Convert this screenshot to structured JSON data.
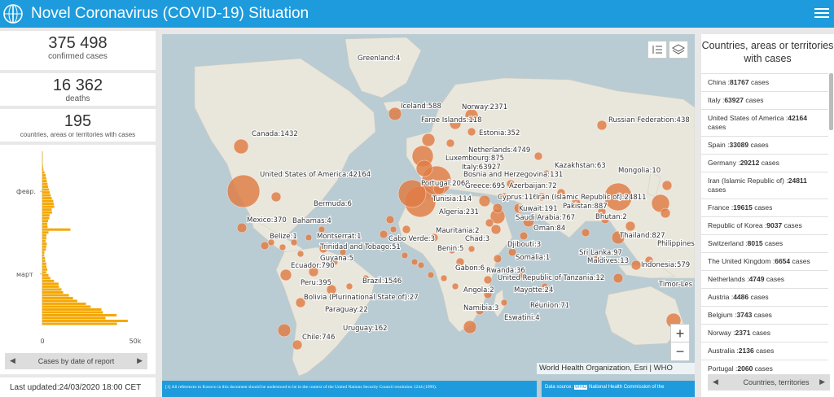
{
  "header": {
    "title": "Novel Coronavirus (COVID-19) Situation"
  },
  "stats": {
    "confirmed": {
      "value": "375 498",
      "label": "confirmed cases"
    },
    "deaths": {
      "value": "16 362",
      "label": "deaths"
    },
    "countries": {
      "value": "195",
      "label": "countries, areas or territories with cases"
    }
  },
  "chart_data": {
    "type": "bar",
    "orientation": "horizontal",
    "title": "",
    "y_tick_labels": [
      "февр.",
      "март"
    ],
    "x_tick_labels": [
      "0",
      "50k"
    ],
    "xlim": [
      0,
      50000
    ],
    "color": "#f5a700",
    "values": [
      50,
      80,
      120,
      150,
      200,
      400,
      600,
      1200,
      1800,
      2100,
      2400,
      2800,
      3100,
      3600,
      4000,
      4500,
      5100,
      5900,
      6200,
      6400,
      5000,
      5200,
      3900,
      3700,
      3100,
      2700,
      2800,
      15100,
      3300,
      2200,
      2100,
      1800,
      2400,
      2100,
      1900,
      1100,
      1000,
      1400,
      1600,
      2100,
      2200,
      2700,
      2100,
      3300,
      4300,
      6300,
      8700,
      9000,
      10300,
      11200,
      14300,
      16500,
      18800,
      23500,
      26000,
      31800,
      32600,
      40000,
      34000,
      46000,
      40200
    ]
  },
  "chart_tab": {
    "label": "Cases by date of report"
  },
  "last_updated": "Last updated:24/03/2020 18:00 CET",
  "map": {
    "bubble_color": "#e17b43",
    "labels": [
      {
        "t": "Greenland:4"
      },
      {
        "t": "Iceland:588"
      },
      {
        "t": "Norway:2371"
      },
      {
        "t": "Faroe Islands:118"
      },
      {
        "t": "Estonia:352"
      },
      {
        "t": "Russian Federation:438"
      },
      {
        "t": "Canada:1432"
      },
      {
        "t": "Netherlands:4749"
      },
      {
        "t": "Luxembourg:875"
      },
      {
        "t": "Italy:63927"
      },
      {
        "t": "Kazakhstan:63"
      },
      {
        "t": "Mongolia:10"
      },
      {
        "t": "Bosnia and Herzegovina:131"
      },
      {
        "t": "United States of America:42164"
      },
      {
        "t": "Portugal:2060"
      },
      {
        "t": "Greece:695"
      },
      {
        "t": "Azerbaijan:72"
      },
      {
        "t": "Cyprus:116"
      },
      {
        "t": "Iran (Islamic Republic of):24811"
      },
      {
        "t": "Bermuda:6"
      },
      {
        "t": "Tunisia:114"
      },
      {
        "t": "Pakistan:887"
      },
      {
        "t": "Kuwait:191"
      },
      {
        "t": "Algeria:231"
      },
      {
        "t": "Bhutan:2"
      },
      {
        "t": "Mexico:370"
      },
      {
        "t": "Bahamas:4"
      },
      {
        "t": "Saudi Arabia:767"
      },
      {
        "t": "Oman:84"
      },
      {
        "t": "Mauritania:2"
      },
      {
        "t": "Thailand:827"
      },
      {
        "t": "Belize:1"
      },
      {
        "t": "Montserrat:1"
      },
      {
        "t": "Cabo Verde:3"
      },
      {
        "t": "Chad:3"
      },
      {
        "t": "Philippines"
      },
      {
        "t": "Trinidad and Tobago:51"
      },
      {
        "t": "Djibouti:3"
      },
      {
        "t": "Benin:5"
      },
      {
        "t": "Sri Lanka:97"
      },
      {
        "t": "Guyana:5"
      },
      {
        "t": "Somalia:1"
      },
      {
        "t": "Maldives:13"
      },
      {
        "t": "Indonesia:579"
      },
      {
        "t": "Ecuador:790"
      },
      {
        "t": "Gabon:6"
      },
      {
        "t": "Rwanda:36"
      },
      {
        "t": "United Republic of Tanzania:12"
      },
      {
        "t": "Peru:395"
      },
      {
        "t": "Brazil:1546"
      },
      {
        "t": "Timor-Les"
      },
      {
        "t": "Angola:2"
      },
      {
        "t": "Mayotte:24"
      },
      {
        "t": "Bolivia (Plurinational State of):27"
      },
      {
        "t": "Namibia:3"
      },
      {
        "t": "Réunion:71"
      },
      {
        "t": "Paraguay:22"
      },
      {
        "t": "Eswatini:4"
      },
      {
        "t": "Uruguay:162"
      },
      {
        "t": "Chile:746"
      }
    ],
    "zoom_in": "+",
    "zoom_out": "−",
    "attribution": "World Health Organization, Esri | WHO",
    "footnote": "[1] All references to Kosovo in this document should be understood to be in the context of the United Nations Security Council resolution 1244 (1999).",
    "datasource_prefix": "Data source: ",
    "datasource_who": "WHO",
    "datasource_rest": " National Health Commission of the"
  },
  "list": {
    "title": "Countries, areas or territories with cases",
    "rows": [
      {
        "name": "China",
        "count": "81767",
        "unit": "cases"
      },
      {
        "name": "Italy",
        "count": "63927",
        "unit": "cases"
      },
      {
        "name": "United States of America",
        "count": "42164",
        "unit": "cases"
      },
      {
        "name": "Spain",
        "count": "33089",
        "unit": "cases"
      },
      {
        "name": "Germany",
        "count": "29212",
        "unit": "cases"
      },
      {
        "name": "Iran (Islamic Republic of)",
        "count": "24811",
        "unit": "cases"
      },
      {
        "name": "France",
        "count": "19615",
        "unit": "cases"
      },
      {
        "name": "Republic of Korea",
        "count": "9037",
        "unit": "cases"
      },
      {
        "name": "Switzerland",
        "count": "8015",
        "unit": "cases"
      },
      {
        "name": "The United Kingdom",
        "count": "6654",
        "unit": "cases"
      },
      {
        "name": "Netherlands",
        "count": "4749",
        "unit": "cases"
      },
      {
        "name": "Austria",
        "count": "4486",
        "unit": "cases"
      },
      {
        "name": "Belgium",
        "count": "3743",
        "unit": "cases"
      },
      {
        "name": "Norway",
        "count": "2371",
        "unit": "cases"
      },
      {
        "name": "Australia",
        "count": "2136",
        "unit": "cases"
      },
      {
        "name": "Portugal",
        "count": "2060",
        "unit": "cases"
      }
    ],
    "tab_label": "Countries, territories"
  }
}
